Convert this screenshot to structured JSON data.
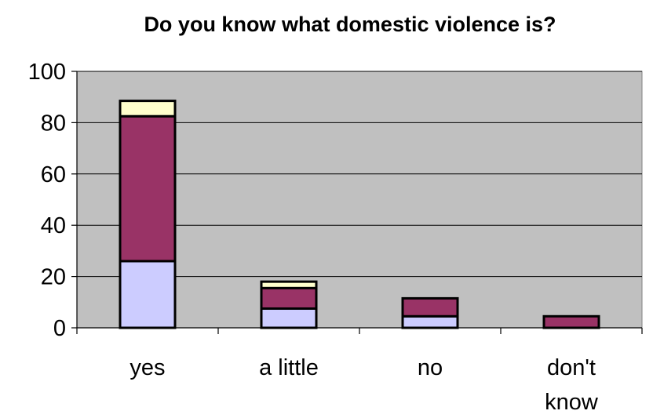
{
  "chart_data": {
    "type": "bar",
    "stacked": true,
    "title": "Do you know what domestic violence is?",
    "xlabel": "",
    "ylabel": "",
    "categories": [
      [
        "yes"
      ],
      [
        "a little"
      ],
      [
        "no"
      ],
      [
        "don't",
        "know"
      ]
    ],
    "series": [
      {
        "values": [
          26,
          7.5,
          4.5,
          0
        ],
        "color": "#ccccff"
      },
      {
        "values": [
          56.5,
          8,
          7,
          4.5
        ],
        "color": "#993366"
      },
      {
        "values": [
          6,
          2.5,
          0,
          0
        ],
        "color": "#ffffcc"
      }
    ],
    "ylim": [
      0,
      100
    ],
    "yticks": [
      0,
      20,
      40,
      60,
      80,
      100
    ],
    "grid": true,
    "legend": "none",
    "plot_background": "#c0c0c0"
  }
}
